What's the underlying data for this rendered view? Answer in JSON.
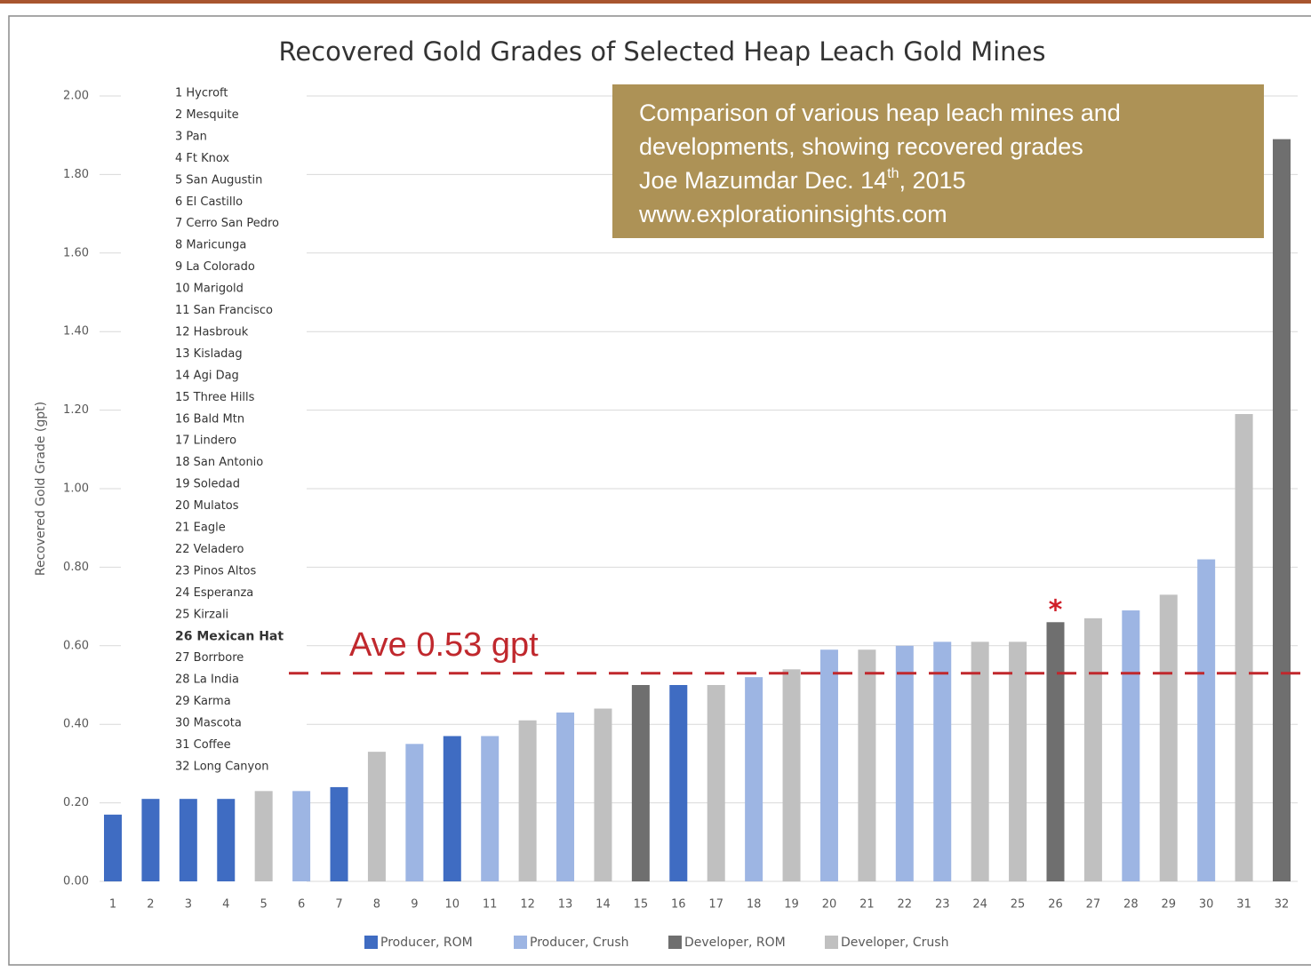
{
  "chart_data": {
    "type": "bar",
    "title": "Recovered Gold Grades of Selected Heap Leach Gold Mines",
    "y_label": "Recovered Gold Grade (gpt)",
    "categories": [
      "1",
      "2",
      "3",
      "4",
      "5",
      "6",
      "7",
      "8",
      "9",
      "10",
      "11",
      "12",
      "13",
      "14",
      "15",
      "16",
      "17",
      "18",
      "19",
      "20",
      "21",
      "22",
      "23",
      "24",
      "25",
      "26",
      "27",
      "28",
      "29",
      "30",
      "31",
      "32"
    ],
    "series": [
      {
        "name": "Producer, ROM",
        "color": "#3f6cc2",
        "values": [
          0.17,
          0.21,
          0.21,
          0.21,
          null,
          null,
          0.24,
          null,
          null,
          0.37,
          null,
          null,
          null,
          null,
          null,
          0.5,
          null,
          null,
          null,
          null,
          null,
          null,
          null,
          null,
          null,
          null,
          null,
          null,
          null,
          null,
          null,
          null
        ]
      },
      {
        "name": "Producer, Crush",
        "color": "#9db5e3",
        "values": [
          null,
          null,
          null,
          null,
          null,
          0.23,
          null,
          null,
          0.35,
          null,
          0.37,
          null,
          0.43,
          null,
          null,
          null,
          null,
          0.52,
          null,
          0.59,
          null,
          0.6,
          0.61,
          null,
          null,
          null,
          null,
          0.69,
          null,
          0.82,
          null,
          null
        ]
      },
      {
        "name": "Developer, ROM",
        "color": "#6f6f6f",
        "values": [
          null,
          null,
          null,
          null,
          null,
          null,
          null,
          null,
          null,
          null,
          null,
          null,
          null,
          null,
          0.5,
          null,
          null,
          null,
          null,
          null,
          null,
          null,
          null,
          null,
          null,
          0.66,
          null,
          null,
          null,
          null,
          null,
          1.89
        ]
      },
      {
        "name": "Developer, Crush",
        "color": "#c0c0c0",
        "values": [
          null,
          null,
          null,
          null,
          0.23,
          null,
          null,
          0.33,
          null,
          null,
          null,
          0.41,
          null,
          0.44,
          null,
          null,
          0.5,
          null,
          0.54,
          null,
          0.59,
          null,
          null,
          0.61,
          0.61,
          null,
          0.67,
          null,
          0.73,
          null,
          1.19,
          null
        ]
      }
    ],
    "ylim": [
      0,
      2
    ],
    "yticks": [
      {
        "value": 0,
        "label": "0.00"
      },
      {
        "value": 0.2,
        "label": "0.20"
      },
      {
        "value": 0.4,
        "label": "0.40"
      },
      {
        "value": 0.6,
        "label": "0.60"
      },
      {
        "value": 0.8,
        "label": "0.80"
      },
      {
        "value": 1,
        "label": "1.00"
      },
      {
        "value": 1.2,
        "label": "1.20"
      },
      {
        "value": 1.4,
        "label": "1.40"
      },
      {
        "value": 1.6,
        "label": "1.60"
      },
      {
        "value": 1.8,
        "label": "1.80"
      },
      {
        "value": 2,
        "label": "2.00"
      }
    ],
    "grid": true,
    "legend": "bottom",
    "mine_list": [
      "1 Hycroft",
      "2 Mesquite",
      "3 Pan",
      "4 Ft Knox",
      "5 San Augustin",
      "6 El Castillo",
      "7 Cerro San Pedro",
      "8 Maricunga",
      "9 La Colorado",
      "10 Marigold",
      "11 San Francisco",
      "12 Hasbrouk",
      "13 Kisladag",
      "14 Agi Dag",
      "15 Three Hills",
      "16 Bald Mtn",
      "17 Lindero",
      "18 San Antonio",
      "19 Soledad",
      "20 Mulatos",
      "21 Eagle",
      "22 Veladero",
      "23 Pinos Altos",
      "24 Esperanza",
      "25 Kirzali",
      "26 Mexican Hat",
      "27 Borrbore",
      "28 La India",
      "29 Karma",
      "30 Mascota",
      "31 Coffee",
      "32 Long Canyon"
    ],
    "average_line": {
      "value": 0.53,
      "label": "Ave 0.53 gpt",
      "color": "#c0282d"
    },
    "asterisk": "*",
    "note": {
      "line1": "Comparison of various heap leach mines and",
      "line2": "developments, showing recovered grades",
      "line3a": "Joe Mazumdar Dec. 14",
      "line3sup": "th",
      "line3b": ", 2015",
      "line4": "www.explorationinsights.com"
    }
  }
}
